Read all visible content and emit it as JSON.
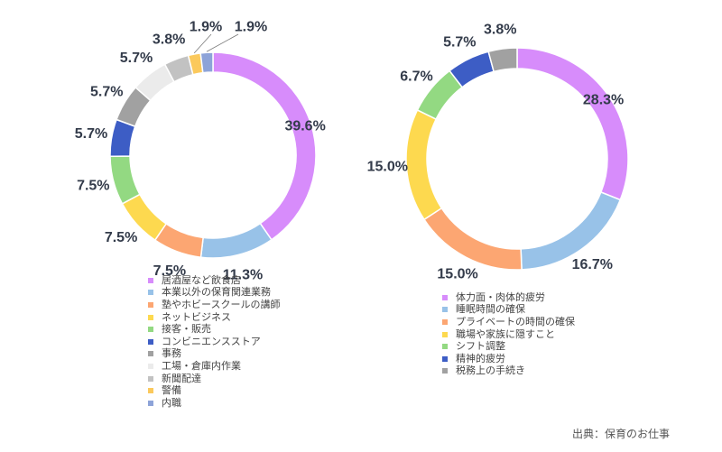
{
  "chart_data": [
    {
      "type": "pie",
      "donut": true,
      "legend": "bottom",
      "categories": [
        "居酒屋など飲食店",
        "本業以外の保育関連業務",
        "塾やホビースクールの講師",
        "ネットビジネス",
        "接客・販売",
        "コンビニエンスストア",
        "事務",
        "工場・倉庫内作業",
        "新聞配達",
        "警備",
        "内職"
      ],
      "values": [
        39.6,
        11.3,
        7.5,
        7.5,
        7.5,
        5.7,
        5.7,
        5.7,
        3.8,
        1.9,
        1.9
      ],
      "labels": [
        "39.6%",
        "11.3%",
        "7.5%",
        "7.5%",
        "7.5%",
        "5.7%",
        "5.7%",
        "5.7%",
        "3.8%",
        "1.9%",
        "1.9%"
      ],
      "colors": [
        "#d78cfb",
        "#98c2e8",
        "#fca672",
        "#fdd94f",
        "#93d982",
        "#3d5dc5",
        "#a1a1a1",
        "#ebebeb",
        "#c2c2c2",
        "#fbc95c",
        "#8da3d8"
      ]
    },
    {
      "type": "pie",
      "donut": true,
      "legend": "bottom",
      "categories": [
        "体力面・肉体的疲労",
        "睡眠時間の確保",
        "プライベートの時間の確保",
        "職場や家族に隠すこと",
        "シフト調整",
        "精神的疲労",
        "税務上の手続き"
      ],
      "values": [
        28.3,
        16.7,
        15.0,
        15.0,
        6.7,
        5.7,
        3.8
      ],
      "labels": [
        "28.3%",
        "16.7%",
        "15.0%",
        "15.0%",
        "6.7%",
        "5.7%",
        "3.8%"
      ],
      "colors": [
        "#d78cfb",
        "#98c2e8",
        "#fca672",
        "#fdd94f",
        "#93d982",
        "#3d5dc5",
        "#a1a1a1"
      ]
    }
  ],
  "source": "出典：保育のお仕事"
}
